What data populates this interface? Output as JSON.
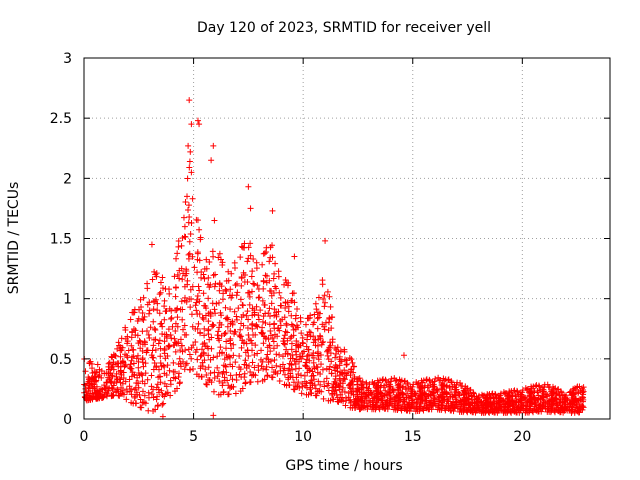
{
  "chart_data": {
    "type": "scatter",
    "title": "Day 120 of 2023, SRMTID for receiver yell",
    "xlabel": "GPS time / hours",
    "ylabel": "SRMTID / TECUs",
    "xlim": [
      0,
      24
    ],
    "ylim": [
      0,
      3
    ],
    "xticks": [
      0,
      5,
      10,
      15,
      20
    ],
    "yticks": [
      0,
      0.5,
      1,
      1.5,
      2,
      2.5,
      3
    ],
    "xtick_labels": [
      "0",
      "5",
      "10",
      "15",
      "20"
    ],
    "ytick_labels": [
      "0",
      "0.5",
      "1",
      "1.5",
      "2",
      "2.5",
      "3"
    ],
    "grid": true,
    "marker": "+",
    "color": "#ff0000",
    "series": [
      {
        "name": "SRMTID",
        "envelope": [
          {
            "x": 0.0,
            "low": 0.15,
            "high": 0.5
          },
          {
            "x": 1.0,
            "low": 0.18,
            "high": 0.45
          },
          {
            "x": 1.5,
            "low": 0.2,
            "high": 0.6
          },
          {
            "x": 2.0,
            "low": 0.15,
            "high": 0.85
          },
          {
            "x": 2.5,
            "low": 0.1,
            "high": 0.95
          },
          {
            "x": 3.0,
            "low": 0.05,
            "high": 1.25
          },
          {
            "x": 3.5,
            "low": 0.1,
            "high": 1.2
          },
          {
            "x": 4.0,
            "low": 0.2,
            "high": 1.1
          },
          {
            "x": 4.5,
            "low": 0.3,
            "high": 1.7
          },
          {
            "x": 4.8,
            "low": 0.4,
            "high": 2.2
          },
          {
            "x": 5.0,
            "low": 0.4,
            "high": 1.9
          },
          {
            "x": 5.5,
            "low": 0.3,
            "high": 1.3
          },
          {
            "x": 6.0,
            "low": 0.2,
            "high": 1.5
          },
          {
            "x": 6.5,
            "low": 0.2,
            "high": 1.2
          },
          {
            "x": 7.0,
            "low": 0.2,
            "high": 1.4
          },
          {
            "x": 7.5,
            "low": 0.3,
            "high": 1.5
          },
          {
            "x": 8.0,
            "low": 0.3,
            "high": 1.3
          },
          {
            "x": 8.5,
            "low": 0.35,
            "high": 1.5
          },
          {
            "x": 9.0,
            "low": 0.3,
            "high": 1.2
          },
          {
            "x": 9.5,
            "low": 0.25,
            "high": 1.1
          },
          {
            "x": 10.0,
            "low": 0.2,
            "high": 0.8
          },
          {
            "x": 10.5,
            "low": 0.2,
            "high": 0.9
          },
          {
            "x": 11.0,
            "low": 0.15,
            "high": 1.3
          },
          {
            "x": 11.5,
            "low": 0.15,
            "high": 0.6
          },
          {
            "x": 12.0,
            "low": 0.1,
            "high": 0.6
          },
          {
            "x": 12.5,
            "low": 0.08,
            "high": 0.35
          },
          {
            "x": 13.0,
            "low": 0.08,
            "high": 0.3
          },
          {
            "x": 14.0,
            "low": 0.08,
            "high": 0.35
          },
          {
            "x": 15.0,
            "low": 0.06,
            "high": 0.3
          },
          {
            "x": 16.0,
            "low": 0.08,
            "high": 0.35
          },
          {
            "x": 17.0,
            "low": 0.06,
            "high": 0.32
          },
          {
            "x": 18.0,
            "low": 0.05,
            "high": 0.2
          },
          {
            "x": 19.0,
            "low": 0.05,
            "high": 0.22
          },
          {
            "x": 20.0,
            "low": 0.05,
            "high": 0.25
          },
          {
            "x": 21.0,
            "low": 0.06,
            "high": 0.3
          },
          {
            "x": 22.0,
            "low": 0.05,
            "high": 0.22
          },
          {
            "x": 22.8,
            "low": 0.05,
            "high": 0.3
          }
        ],
        "outliers": [
          {
            "x": 4.8,
            "y": 2.65
          },
          {
            "x": 5.2,
            "y": 2.48
          },
          {
            "x": 5.25,
            "y": 2.45
          },
          {
            "x": 4.9,
            "y": 2.45
          },
          {
            "x": 4.75,
            "y": 2.27
          },
          {
            "x": 4.85,
            "y": 2.22
          },
          {
            "x": 5.9,
            "y": 2.27
          },
          {
            "x": 5.8,
            "y": 2.15
          },
          {
            "x": 4.9,
            "y": 2.05
          },
          {
            "x": 4.7,
            "y": 1.85
          },
          {
            "x": 7.5,
            "y": 1.93
          },
          {
            "x": 7.6,
            "y": 1.75
          },
          {
            "x": 8.6,
            "y": 1.73
          },
          {
            "x": 5.95,
            "y": 1.65
          },
          {
            "x": 3.1,
            "y": 1.45
          },
          {
            "x": 11.0,
            "y": 1.48
          },
          {
            "x": 9.6,
            "y": 1.35
          },
          {
            "x": 14.6,
            "y": 0.53
          },
          {
            "x": 3.6,
            "y": 0.02
          },
          {
            "x": 5.9,
            "y": 0.03
          }
        ]
      }
    ]
  }
}
